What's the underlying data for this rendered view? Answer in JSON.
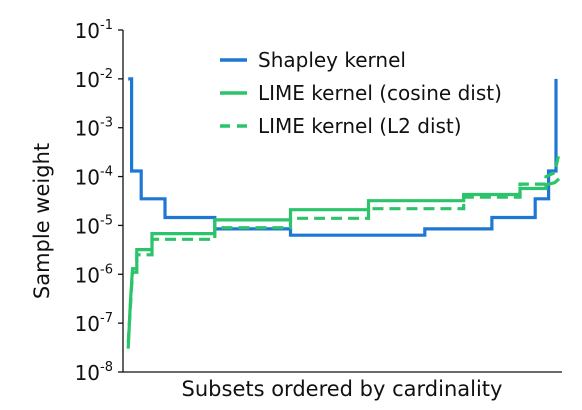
{
  "chart_data": {
    "type": "line",
    "title": "",
    "xlabel": "Subsets ordered by cardinality",
    "ylabel": "Sample weight",
    "yscale": "log",
    "ylim": [
      1e-08,
      0.1
    ],
    "xlim": [
      0,
      1
    ],
    "yticks": [
      {
        "value": 1e-08,
        "base": "10",
        "exp": "-8"
      },
      {
        "value": 1e-07,
        "base": "10",
        "exp": "-7"
      },
      {
        "value": 1e-06,
        "base": "10",
        "exp": "-6"
      },
      {
        "value": 1e-05,
        "base": "10",
        "exp": "-5"
      },
      {
        "value": 0.0001,
        "base": "10",
        "exp": "-4"
      },
      {
        "value": 0.001,
        "base": "10",
        "exp": "-3"
      },
      {
        "value": 0.01,
        "base": "10",
        "exp": "-2"
      },
      {
        "value": 0.1,
        "base": "10",
        "exp": "-1"
      }
    ],
    "grid": false,
    "legend_position": "top-right",
    "series": [
      {
        "name": "Shapley kernel",
        "color": "#1f77d4",
        "style": "solid",
        "step": true,
        "points": [
          [
            0.005,
            0.01
          ],
          [
            0.013,
            0.01
          ],
          [
            0.013,
            0.00013
          ],
          [
            0.035,
            0.00013
          ],
          [
            0.035,
            3.5e-05
          ],
          [
            0.09,
            3.5e-05
          ],
          [
            0.09,
            1.45e-05
          ],
          [
            0.205,
            1.45e-05
          ],
          [
            0.205,
            8.5e-06
          ],
          [
            0.38,
            8.5e-06
          ],
          [
            0.38,
            6.3e-06
          ],
          [
            0.69,
            6.3e-06
          ],
          [
            0.69,
            8.5e-06
          ],
          [
            0.845,
            8.5e-06
          ],
          [
            0.845,
            1.45e-05
          ],
          [
            0.945,
            1.45e-05
          ],
          [
            0.945,
            3.5e-05
          ],
          [
            0.976,
            3.5e-05
          ],
          [
            0.976,
            0.00013
          ],
          [
            0.993,
            0.00013
          ],
          [
            0.993,
            0.01
          ]
        ]
      },
      {
        "name": "LIME kernel (cosine dist)",
        "color": "#2cc46a",
        "style": "solid",
        "step": true,
        "points": [
          [
            0.005,
            3e-08
          ],
          [
            0.01,
            2.5e-07
          ],
          [
            0.015,
            1.3e-06
          ],
          [
            0.025,
            1.3e-06
          ],
          [
            0.025,
            3.2e-06
          ],
          [
            0.06,
            3.2e-06
          ],
          [
            0.06,
            6.8e-06
          ],
          [
            0.205,
            6.8e-06
          ],
          [
            0.205,
            1.3e-05
          ],
          [
            0.38,
            1.3e-05
          ],
          [
            0.38,
            2.1e-05
          ],
          [
            0.56,
            2.1e-05
          ],
          [
            0.56,
            3.2e-05
          ],
          [
            0.78,
            3.2e-05
          ],
          [
            0.78,
            4.3e-05
          ],
          [
            0.91,
            4.3e-05
          ],
          [
            0.91,
            5.7e-05
          ],
          [
            0.97,
            5.7e-05
          ],
          [
            0.97,
            6.8e-05
          ],
          [
            0.99,
            7.5e-05
          ],
          [
            1.0,
            9e-05
          ]
        ]
      },
      {
        "name": "LIME kernel (L2 dist)",
        "color": "#2cc46a",
        "style": "dashed",
        "step": true,
        "points": [
          [
            0.005,
            4e-08
          ],
          [
            0.01,
            2e-07
          ],
          [
            0.015,
            1.1e-06
          ],
          [
            0.025,
            1.1e-06
          ],
          [
            0.025,
            2.5e-06
          ],
          [
            0.06,
            2.5e-06
          ],
          [
            0.06,
            5.2e-06
          ],
          [
            0.205,
            5.2e-06
          ],
          [
            0.205,
            9e-06
          ],
          [
            0.38,
            9e-06
          ],
          [
            0.38,
            1.4e-05
          ],
          [
            0.56,
            1.4e-05
          ],
          [
            0.56,
            2.2e-05
          ],
          [
            0.78,
            2.2e-05
          ],
          [
            0.78,
            3.8e-05
          ],
          [
            0.91,
            3.8e-05
          ],
          [
            0.91,
            7e-05
          ],
          [
            0.97,
            7e-05
          ],
          [
            0.97,
            0.0001
          ],
          [
            0.99,
            0.00012
          ],
          [
            1.0,
            0.0003
          ]
        ]
      }
    ]
  }
}
